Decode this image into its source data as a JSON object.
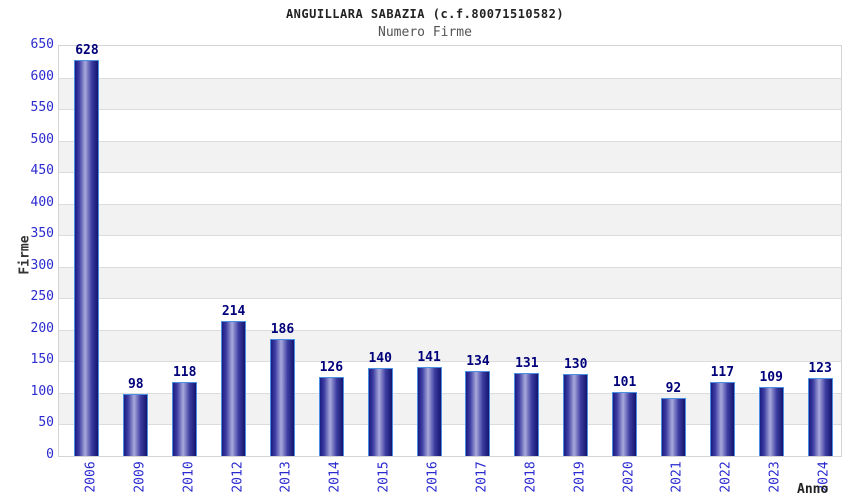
{
  "chart_data": {
    "type": "bar",
    "title": "ANGUILLARA SABAZIA (c.f.80071510582)",
    "subtitle": "Numero Firme",
    "xlabel": "Anno",
    "ylabel": "Firme",
    "categories": [
      "2006",
      "2009",
      "2010",
      "2012",
      "2013",
      "2014",
      "2015",
      "2016",
      "2017",
      "2018",
      "2019",
      "2020",
      "2021",
      "2022",
      "2023",
      "2024"
    ],
    "values": [
      628,
      98,
      118,
      214,
      186,
      126,
      140,
      141,
      134,
      131,
      130,
      101,
      92,
      117,
      109,
      123
    ],
    "ylim": [
      0,
      650
    ],
    "ytick_step": 50,
    "grid": "horizontal-bands",
    "legend_position": "none",
    "colors": {
      "bar_border": "#4a90e2",
      "bar_edge_dark": "#15156e",
      "bar_edge": "#1b1b82",
      "bar_mid": "#3d3da2",
      "bar_highlight": "#a9a9dd",
      "value_label": "#00007a",
      "tick_text": "#2a2ad0",
      "band_alt": "#f2f2f2",
      "band_main": "#ffffff",
      "gridline": "#dcdcdc",
      "plot_border": "#d4d4d4",
      "title_text": "#222222",
      "subtitle_text": "#555555",
      "axis_title_text": "#333333"
    }
  }
}
